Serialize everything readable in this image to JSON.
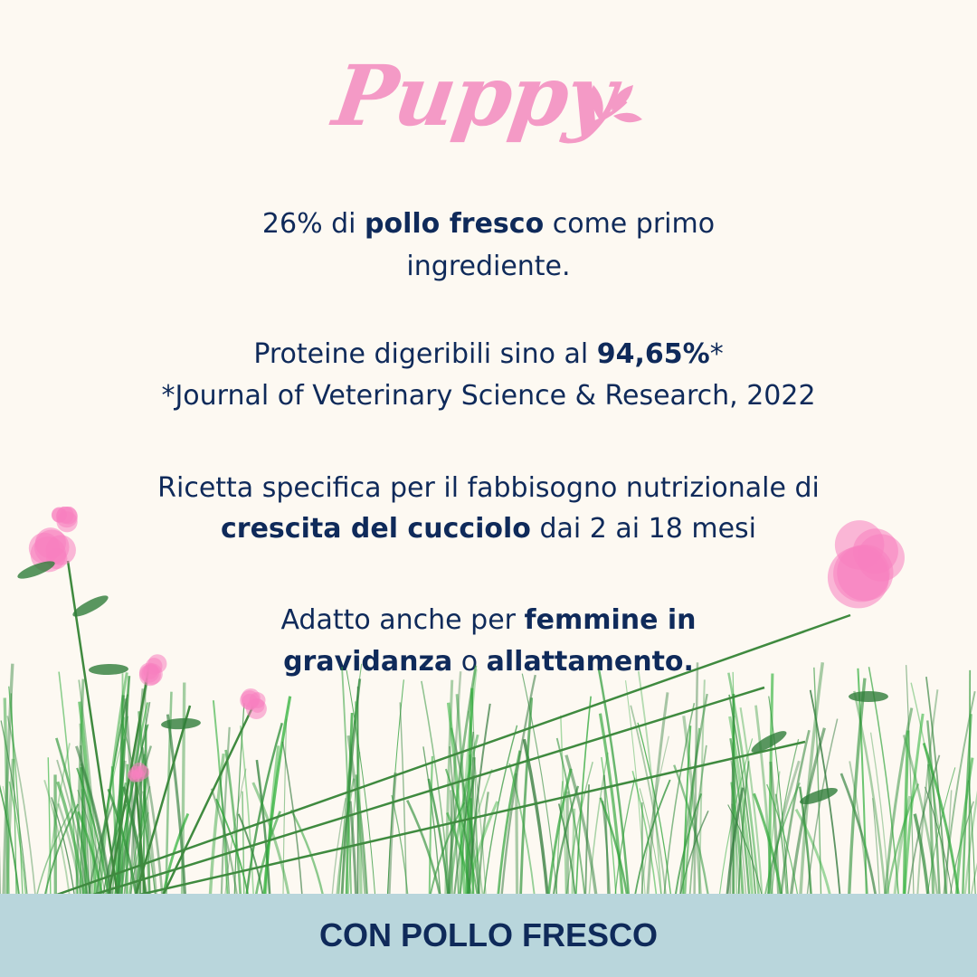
{
  "logo": {
    "text": "Puppy"
  },
  "colors": {
    "background": "#fdf9f2",
    "logo_pink": "#f49ac6",
    "text_navy": "#0f2a5a",
    "bar": "#b9d6dc",
    "grass": "#3f8a3f",
    "flower": "#f77fc0"
  },
  "blocks": [
    {
      "l1a": "26% di ",
      "l1b": "pollo fresco",
      "l1c": " come primo",
      "l2": "ingrediente."
    },
    {
      "l1a": "Proteine digeribili sino al ",
      "l1b": "94,65%",
      "l1c": "*",
      "l2": "*Journal of Veterinary Science & Research, 2022"
    },
    {
      "l1": "Ricetta specifica per il fabbisogno nutrizionale di",
      "l2a": "crescita del cucciolo",
      "l2b": " dai 2 ai 18 mesi"
    },
    {
      "l1a": "Adatto anche per ",
      "l1b": "femmine in",
      "l2a": "gravidanza",
      "l2b": " o ",
      "l2c": "allattamento."
    }
  ],
  "footer": {
    "label": "CON POLLO FRESCO"
  }
}
